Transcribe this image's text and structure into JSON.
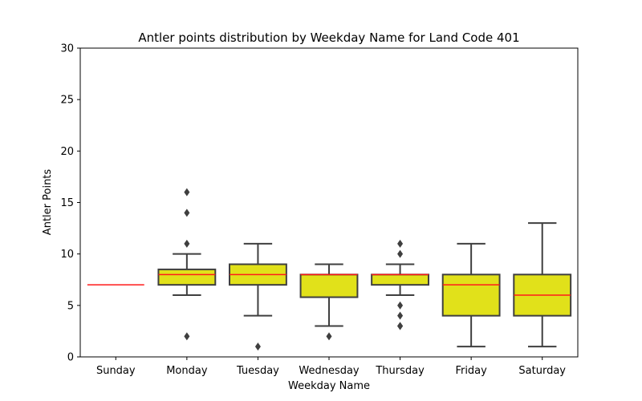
{
  "chart_data": {
    "type": "box",
    "title": "Antler points distribution by Weekday Name for Land Code 401",
    "xlabel": "Weekday Name",
    "ylabel": "Antler Points",
    "ylim": [
      0,
      30
    ],
    "yticks": [
      0,
      5,
      10,
      15,
      20,
      25,
      30
    ],
    "categories": [
      "Sunday",
      "Monday",
      "Tuesday",
      "Wednesday",
      "Thursday",
      "Friday",
      "Saturday"
    ],
    "boxes": [
      {
        "category": "Sunday",
        "whisker_low": 7,
        "q1": 7,
        "median": 7,
        "q3": 7,
        "whisker_high": 7,
        "outliers": []
      },
      {
        "category": "Monday",
        "whisker_low": 6,
        "q1": 7,
        "median": 8,
        "q3": 8.5,
        "whisker_high": 10,
        "outliers": [
          2,
          11,
          14,
          16
        ]
      },
      {
        "category": "Tuesday",
        "whisker_low": 4,
        "q1": 7,
        "median": 8,
        "q3": 9,
        "whisker_high": 11,
        "outliers": [
          1
        ]
      },
      {
        "category": "Wednesday",
        "whisker_low": 3,
        "q1": 5.8,
        "median": 8,
        "q3": 8,
        "whisker_high": 9,
        "outliers": [
          2
        ]
      },
      {
        "category": "Thursday",
        "whisker_low": 6,
        "q1": 7,
        "median": 8,
        "q3": 8,
        "whisker_high": 9,
        "outliers": [
          3,
          3,
          4,
          5,
          10,
          11
        ]
      },
      {
        "category": "Friday",
        "whisker_low": 1,
        "q1": 4,
        "median": 7,
        "q3": 8,
        "whisker_high": 11,
        "outliers": []
      },
      {
        "category": "Saturday",
        "whisker_low": 1,
        "q1": 4,
        "median": 6,
        "q3": 8,
        "whisker_high": 13,
        "outliers": []
      }
    ],
    "colors": {
      "box_fill": "#e1e11a",
      "box_edge": "#3f3f3f",
      "median": "#ff1a1a",
      "whisker": "#3f3f3f",
      "outlier": "#3f3f3f"
    },
    "grid": false
  }
}
